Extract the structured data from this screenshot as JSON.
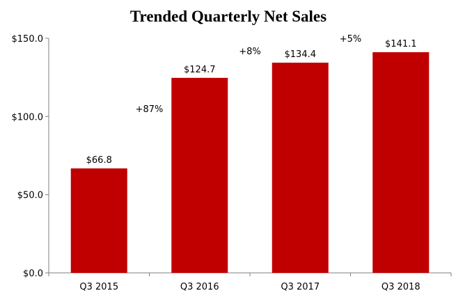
{
  "chart_data": {
    "type": "bar",
    "title": "Trended Quarterly Net Sales",
    "categories": [
      "Q3 2015",
      "Q3 2016",
      "Q3 2017",
      "Q3 2018"
    ],
    "values": [
      66.8,
      124.7,
      134.4,
      141.1
    ],
    "data_labels": [
      "$66.8",
      "$124.7",
      "$134.4",
      "$141.1"
    ],
    "ylim": [
      0,
      150
    ],
    "yticks": [
      0,
      50,
      100,
      150
    ],
    "ytick_labels": [
      "$0.0",
      "$50.0",
      "$100.0",
      "$150.0"
    ],
    "xlabel": "",
    "ylabel": "",
    "grid": false,
    "bar_color": "#C00000",
    "annotations": [
      {
        "text": "+87%",
        "between": [
          "Q3 2015",
          "Q3 2016"
        ],
        "y": 105
      },
      {
        "text": "+8%",
        "between": [
          "Q3 2016",
          "Q3 2017"
        ],
        "y": 142
      },
      {
        "text": "+5%",
        "between": [
          "Q3 2017",
          "Q3 2018"
        ],
        "y": 150
      }
    ]
  }
}
